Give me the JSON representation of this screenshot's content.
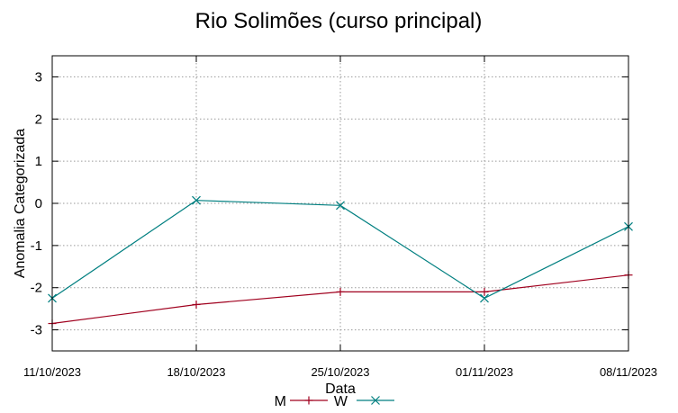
{
  "chart_data": {
    "type": "line",
    "title": "Rio Solimões (curso principal)",
    "xlabel": "Data",
    "ylabel": "Anomalia Categorizada",
    "categories": [
      "11/10/2023",
      "18/10/2023",
      "25/10/2023",
      "01/11/2023",
      "08/11/2023"
    ],
    "yticks": [
      "3",
      "2",
      "1",
      "0",
      "-1",
      "-2",
      "-3"
    ],
    "ylim": [
      -3.5,
      3.5
    ],
    "grid": true,
    "legend_position": "bottom",
    "series": [
      {
        "name": "M",
        "values": [
          -2.85,
          -2.4,
          -2.1,
          -2.1,
          -1.7
        ],
        "color": "#a0001e",
        "marker": "plus"
      },
      {
        "name": "W",
        "values": [
          -2.25,
          0.07,
          -0.05,
          -2.25,
          -0.55
        ],
        "color": "#007f80",
        "marker": "cross"
      }
    ]
  }
}
